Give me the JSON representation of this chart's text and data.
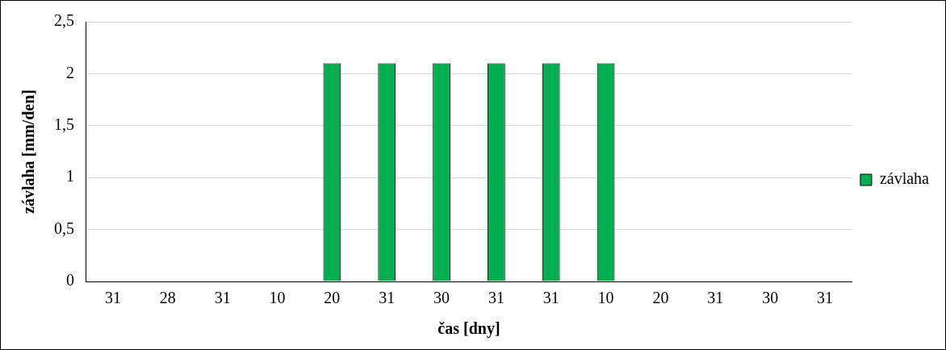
{
  "chart_data": {
    "type": "bar",
    "xlabel": "čas [dny]",
    "ylabel": "závlaha [mm/den]",
    "categories": [
      "31",
      "28",
      "31",
      "10",
      "20",
      "31",
      "30",
      "31",
      "31",
      "10",
      "20",
      "31",
      "30",
      "31"
    ],
    "series": [
      {
        "name": "závlaha",
        "color": "#00b050",
        "values": [
          0,
          0,
          0,
          0,
          2.1,
          2.1,
          2.1,
          2.1,
          2.1,
          2.1,
          0,
          0,
          0,
          0
        ]
      }
    ],
    "ylim": [
      0,
      2.5
    ],
    "yticks": [
      0,
      {
        "value": 0.5,
        "label": "0,5"
      },
      1,
      {
        "value": 1.5,
        "label": "1,5"
      },
      2,
      {
        "value": 2.5,
        "label": "2,5"
      }
    ],
    "grid": "y",
    "legend": "right"
  }
}
